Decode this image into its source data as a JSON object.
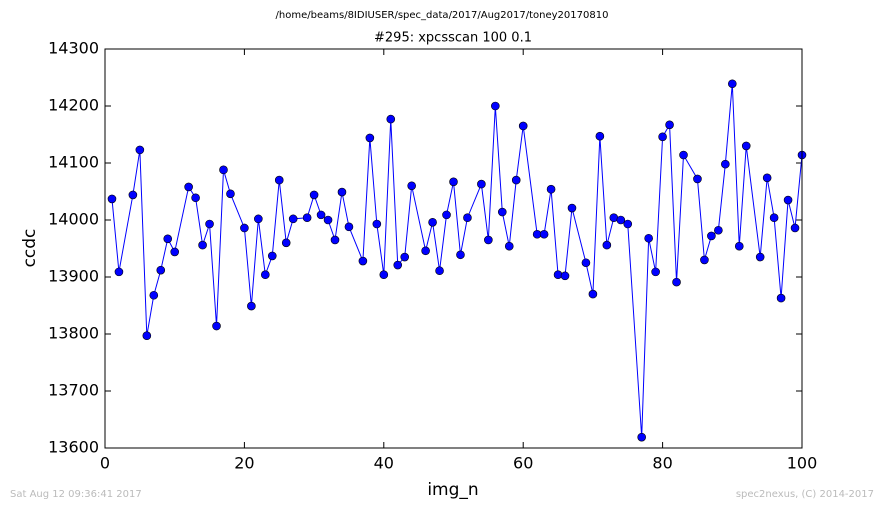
{
  "chart_data": {
    "type": "line",
    "header": "/home/beams/8IDIUSER/spec_data/2017/Aug2017/toney20170810",
    "title": "#295: xpcsscan 100 0.1",
    "x_label": "img_n",
    "y_label": "ccdc",
    "timestamp": "Sat Aug 12 09:36:41 2017",
    "credit": "spec2nexus, (C) 2014-2017",
    "xlim": [
      0,
      100
    ],
    "xticks": [
      0,
      20,
      40,
      60,
      80,
      100
    ],
    "ylim": [
      13600,
      14300
    ],
    "yticks": [
      13600,
      13700,
      13800,
      13900,
      14000,
      14100,
      14200,
      14300
    ],
    "grid": false,
    "x": [
      1,
      2,
      4,
      5,
      6,
      7,
      8,
      9,
      10,
      12,
      13,
      14,
      15,
      16,
      17,
      18,
      20,
      21,
      22,
      23,
      24,
      25,
      26,
      27,
      29,
      30,
      31,
      32,
      33,
      34,
      35,
      37,
      38,
      39,
      40,
      41,
      42,
      43,
      44,
      46,
      47,
      48,
      49,
      50,
      51,
      52,
      54,
      55,
      56,
      57,
      58,
      59,
      60,
      62,
      63,
      64,
      65,
      66,
      67,
      69,
      70,
      71,
      72,
      73,
      74,
      75,
      77,
      78,
      79,
      80,
      81,
      82,
      83,
      85,
      86,
      87,
      88,
      89,
      90,
      91,
      92,
      94,
      95,
      96,
      97,
      98,
      99,
      100
    ],
    "series": [
      {
        "color": "#0000ff",
        "values": [
          14037,
          13909,
          14044,
          14123,
          13797,
          13868,
          13912,
          13967,
          13944,
          14058,
          14039,
          13956,
          13993,
          13814,
          14088,
          14046,
          13986,
          13849,
          14002,
          13904,
          13937,
          14070,
          13960,
          14002,
          14004,
          14044,
          14009,
          14000,
          13965,
          14049,
          13988,
          13928,
          14144,
          13993,
          13904,
          14177,
          13921,
          13935,
          14060,
          13946,
          13996,
          13911,
          14009,
          14067,
          13939,
          14004,
          14063,
          13965,
          14200,
          14014,
          13954,
          14070,
          14165,
          13975,
          13975,
          14054,
          13904,
          13902,
          14021,
          13925,
          13870,
          14147,
          13956,
          14004,
          14000,
          13993,
          13619,
          13968,
          13909,
          14146,
          14167,
          13891,
          14114,
          14072,
          13930,
          13972,
          13982,
          14098,
          14239,
          13954,
          14130,
          13935,
          14074,
          14004,
          13863,
          14035,
          13986,
          14114
        ]
      }
    ]
  }
}
